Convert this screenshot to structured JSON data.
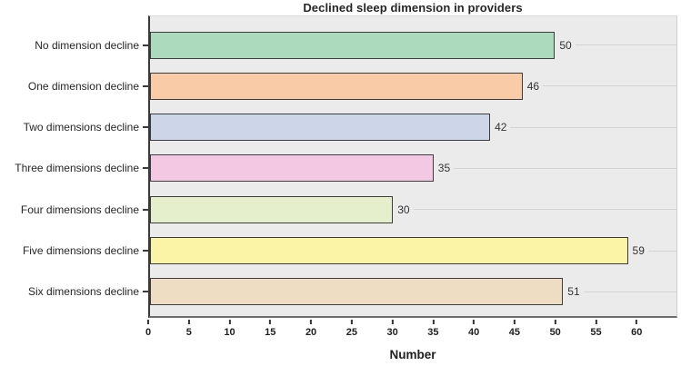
{
  "chart_data": {
    "type": "bar",
    "orientation": "horizontal",
    "title": "Declined sleep dimension in providers",
    "xlabel": "Number",
    "ylabel": "",
    "categories": [
      "No dimension decline",
      "One dimension decline",
      "Two dimensions decline",
      "Three dimensions decline",
      "Four dimensions decline",
      "Five dimensions decline",
      "Six dimensions decline"
    ],
    "values": [
      50,
      46,
      42,
      35,
      30,
      59,
      51
    ],
    "bar_colors": [
      "#abdabd",
      "#f9cba6",
      "#cdd6e9",
      "#f3c8e2",
      "#e5efcb",
      "#fbf3a6",
      "#eeddc3"
    ],
    "bar_border_color": "#3d3d3d",
    "x_ticks": [
      0,
      5,
      10,
      15,
      20,
      25,
      30,
      35,
      40,
      45,
      50,
      55,
      60
    ],
    "xlim": [
      0,
      65
    ],
    "plot_background": "#ebebeb",
    "row_line_color": "#d3d3d3",
    "legend": "none",
    "grid": "horizontal reference line per bar"
  }
}
